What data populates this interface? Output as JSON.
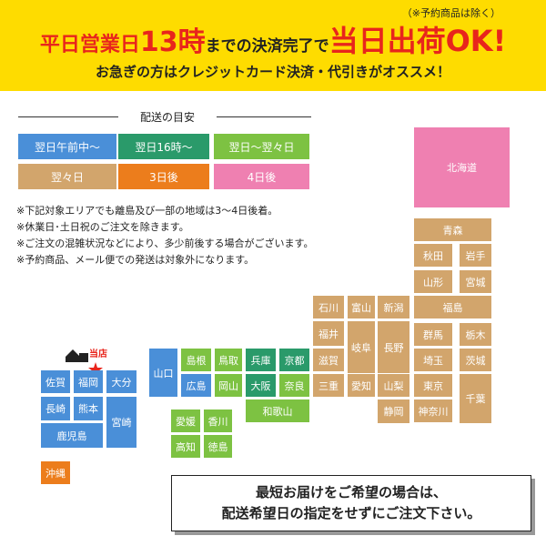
{
  "header": {
    "line1": [
      {
        "text": "平日営業日",
        "color": "#e8251c",
        "size": 22
      },
      {
        "text": "13時",
        "color": "#e8251c",
        "size": 30
      },
      {
        "text": "までの決済完了で",
        "color": "#222222",
        "size": 17
      },
      {
        "text": "当日出荷OK!",
        "color": "#e8251c",
        "size": 32
      }
    ],
    "note": "（※予約商品は除く）",
    "line2": "お急ぎの方はクレジットカード決済・代引きがオススメ！"
  },
  "legend": {
    "title": "配送の目安",
    "items": [
      {
        "label": "翌日午前中〜",
        "color": "#4a8fd8"
      },
      {
        "label": "翌日16時〜",
        "color": "#2a9a6a"
      },
      {
        "label": "翌日〜翌々日",
        "color": "#7dc242"
      },
      {
        "label": "翌々日",
        "color": "#d2a56c"
      },
      {
        "label": "3日後",
        "color": "#ec7d1c"
      },
      {
        "label": "4日後",
        "color": "#ef80b1"
      }
    ]
  },
  "notes": [
    "※下記対象エリアでも離島及び一部の地域は3〜4日後着。",
    "※休業日･土日祝のご注文を除きます。",
    "※ご注文の混雑状況などにより、多少前後する場合がございます。",
    "※予約商品、メール便での発送は対象外になります。"
  ],
  "shop": "当店",
  "regions": [
    {
      "label": "北海道",
      "color": "#ef80b1"
    },
    {
      "label": "青森",
      "color": "#d2a56c"
    },
    {
      "label": "秋田",
      "color": "#d2a56c"
    },
    {
      "label": "岩手",
      "color": "#d2a56c"
    },
    {
      "label": "山形",
      "color": "#d2a56c"
    },
    {
      "label": "宮城",
      "color": "#d2a56c"
    },
    {
      "label": "福島",
      "color": "#d2a56c"
    },
    {
      "label": "群馬",
      "color": "#d2a56c"
    },
    {
      "label": "栃木",
      "color": "#d2a56c"
    },
    {
      "label": "埼玉",
      "color": "#d2a56c"
    },
    {
      "label": "茨城",
      "color": "#d2a56c"
    },
    {
      "label": "東京",
      "color": "#d2a56c"
    },
    {
      "label": "千葉",
      "color": "#d2a56c"
    },
    {
      "label": "神奈川",
      "color": "#d2a56c"
    },
    {
      "label": "新潟",
      "color": "#d2a56c"
    },
    {
      "label": "長野",
      "color": "#d2a56c"
    },
    {
      "label": "山梨",
      "color": "#d2a56c"
    },
    {
      "label": "静岡",
      "color": "#d2a56c"
    },
    {
      "label": "石川",
      "color": "#d2a56c"
    },
    {
      "label": "富山",
      "color": "#d2a56c"
    },
    {
      "label": "福井",
      "color": "#d2a56c"
    },
    {
      "label": "岐阜",
      "color": "#d2a56c"
    },
    {
      "label": "滋賀",
      "color": "#d2a56c"
    },
    {
      "label": "愛知",
      "color": "#d2a56c"
    },
    {
      "label": "三重",
      "color": "#d2a56c"
    },
    {
      "label": "兵庫",
      "color": "#2a9a6a"
    },
    {
      "label": "京都",
      "color": "#2a9a6a"
    },
    {
      "label": "大阪",
      "color": "#2a9a6a"
    },
    {
      "label": "奈良",
      "color": "#7dc242"
    },
    {
      "label": "和歌山",
      "color": "#7dc242"
    },
    {
      "label": "島根",
      "color": "#7dc242"
    },
    {
      "label": "鳥取",
      "color": "#7dc242"
    },
    {
      "label": "広島",
      "color": "#4a8fd8"
    },
    {
      "label": "岡山",
      "color": "#7dc242"
    },
    {
      "label": "山口",
      "color": "#4a8fd8"
    },
    {
      "label": "愛媛",
      "color": "#7dc242"
    },
    {
      "label": "香川",
      "color": "#7dc242"
    },
    {
      "label": "高知",
      "color": "#7dc242"
    },
    {
      "label": "徳島",
      "color": "#7dc242"
    },
    {
      "label": "佐賀",
      "color": "#4a8fd8"
    },
    {
      "label": "福岡",
      "color": "#4a8fd8"
    },
    {
      "label": "大分",
      "color": "#4a8fd8"
    },
    {
      "label": "長崎",
      "color": "#4a8fd8"
    },
    {
      "label": "熊本",
      "color": "#4a8fd8"
    },
    {
      "label": "宮崎",
      "color": "#4a8fd8"
    },
    {
      "label": "鹿児島",
      "color": "#4a8fd8"
    },
    {
      "label": "沖縄",
      "color": "#ec7d1c"
    }
  ],
  "box": [
    "最短お届けをご希望の場合は、",
    "配送希望日の指定をせずにご注文下さい。"
  ]
}
